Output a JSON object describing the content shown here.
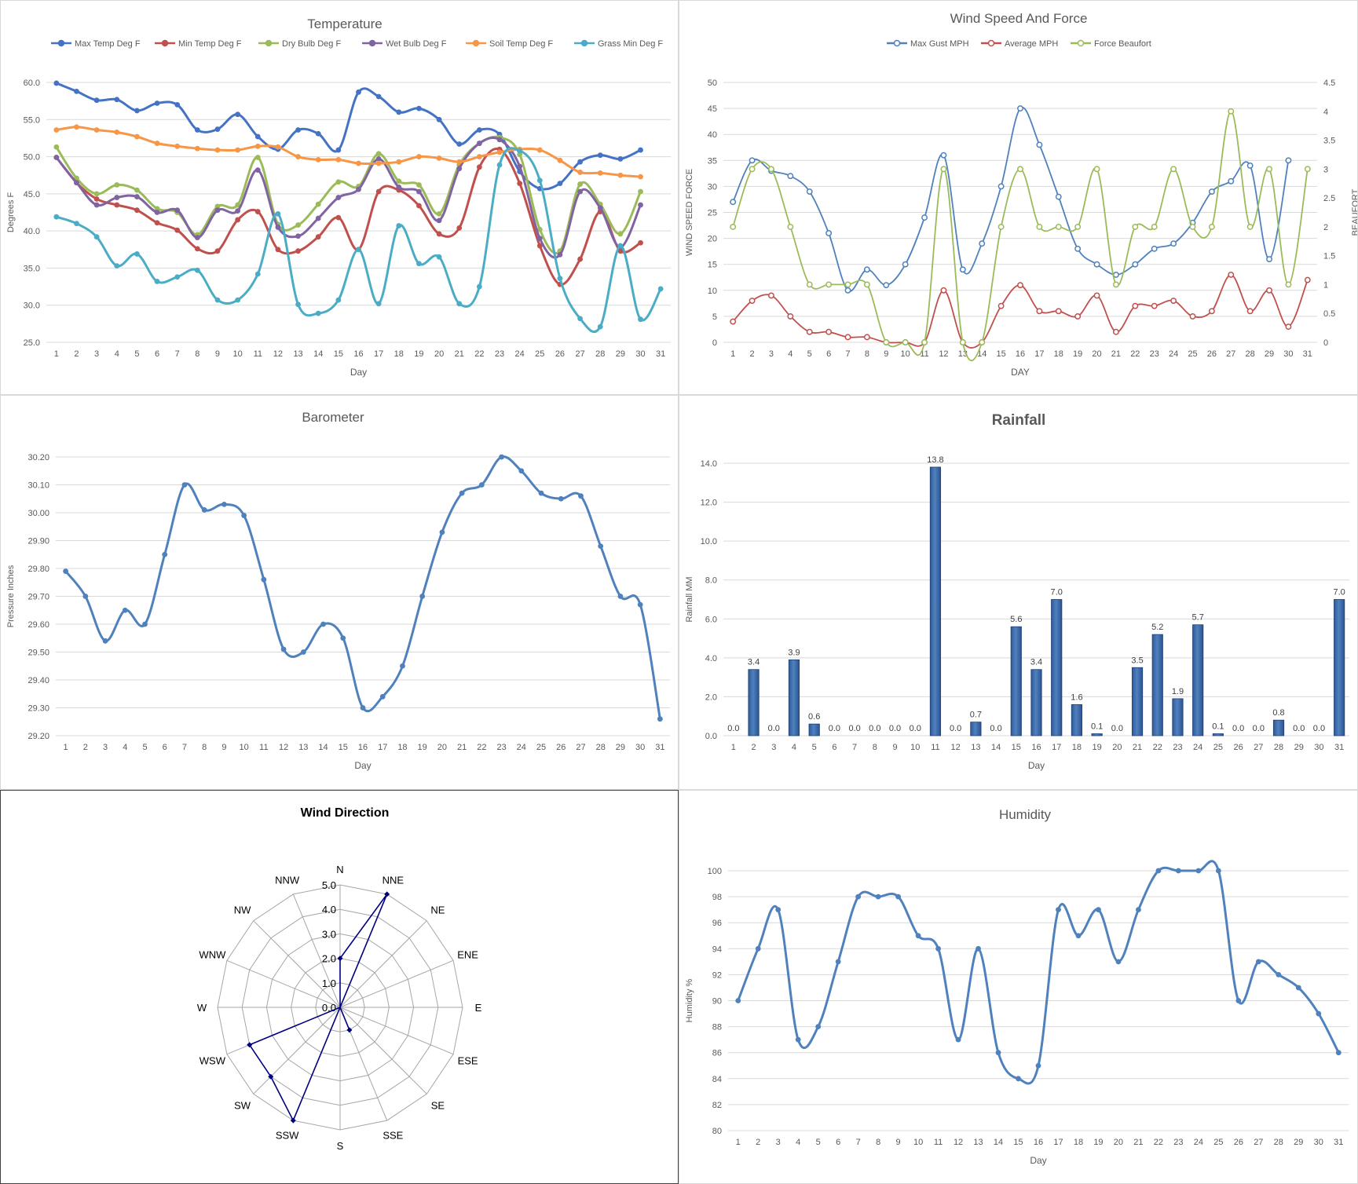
{
  "chart_data": [
    {
      "id": "temperature",
      "type": "line",
      "title": "Temperature",
      "xlabel": "Day",
      "ylabel": "Degrees F",
      "ylim": [
        25,
        60
      ],
      "yticks": [
        "25.0",
        "30.0",
        "35.0",
        "40.0",
        "45.0",
        "50.0",
        "55.0",
        "60.0"
      ],
      "categories": [
        "1",
        "2",
        "3",
        "4",
        "5",
        "6",
        "7",
        "8",
        "9",
        "10",
        "11",
        "12",
        "13",
        "14",
        "15",
        "16",
        "17",
        "18",
        "19",
        "20",
        "21",
        "22",
        "23",
        "24",
        "25",
        "26",
        "27",
        "28",
        "29",
        "30",
        "31"
      ],
      "legend_position": "top",
      "series": [
        {
          "name": "Max Temp Deg F",
          "color": "#4472c4",
          "values": [
            59.9,
            58.8,
            57.6,
            57.7,
            56.2,
            57.2,
            57.0,
            53.6,
            53.7,
            55.7,
            52.7,
            51.0,
            53.6,
            53.1,
            50.9,
            58.7,
            58.1,
            56.0,
            56.5,
            55.0,
            51.7,
            53.6,
            53.0,
            48.0,
            45.7,
            46.4,
            49.3,
            50.2,
            49.7,
            50.9,
            null
          ]
        },
        {
          "name": "Min Temp Deg F",
          "color": "#c0504d",
          "values": [
            49.9,
            46.5,
            44.3,
            43.5,
            42.8,
            41.1,
            40.1,
            37.6,
            37.3,
            41.5,
            42.6,
            37.5,
            37.3,
            39.2,
            41.8,
            37.5,
            45.3,
            45.5,
            43.4,
            39.6,
            40.4,
            48.6,
            51.0,
            46.4,
            38.0,
            32.8,
            36.2,
            42.6,
            37.3,
            38.4,
            null
          ]
        },
        {
          "name": "Dry Bulb Deg F",
          "color": "#9bbb59",
          "values": [
            51.3,
            47.1,
            45.0,
            46.2,
            45.5,
            43.0,
            42.5,
            39.5,
            43.3,
            43.5,
            49.9,
            40.9,
            40.8,
            43.6,
            46.6,
            46.0,
            50.4,
            46.7,
            46.2,
            42.3,
            48.9,
            51.8,
            52.6,
            50.3,
            40.2,
            37.3,
            46.3,
            43.6,
            39.6,
            45.3,
            null
          ]
        },
        {
          "name": "Wet Bulb Deg F",
          "color": "#8064a2",
          "values": [
            49.9,
            46.5,
            43.5,
            44.5,
            44.6,
            42.5,
            42.8,
            39.1,
            42.8,
            42.7,
            48.2,
            40.5,
            39.3,
            41.7,
            44.5,
            45.6,
            49.7,
            45.9,
            45.3,
            41.4,
            48.4,
            51.8,
            52.3,
            48.7,
            39.0,
            36.8,
            45.3,
            43.1,
            37.8,
            43.5,
            null
          ]
        },
        {
          "name": "Soil Temp Deg F",
          "color": "#f79646",
          "values": [
            53.6,
            54.0,
            53.6,
            53.3,
            52.7,
            51.8,
            51.4,
            51.1,
            50.9,
            50.9,
            51.4,
            51.3,
            50.0,
            49.6,
            49.6,
            49.1,
            49.1,
            49.3,
            50.0,
            49.8,
            49.3,
            50.0,
            50.6,
            51.0,
            50.9,
            49.5,
            47.9,
            47.8,
            47.5,
            47.3,
            null
          ]
        },
        {
          "name": "Grass Min Deg F",
          "color": "#4bacc6",
          "values": [
            41.9,
            41.0,
            39.2,
            35.3,
            36.9,
            33.2,
            33.8,
            34.7,
            30.7,
            30.7,
            34.2,
            42.3,
            30.1,
            28.9,
            30.7,
            37.5,
            30.2,
            40.7,
            35.6,
            36.5,
            30.2,
            32.5,
            48.9,
            50.8,
            46.8,
            33.6,
            28.2,
            27.1,
            38.0,
            28.1,
            32.2
          ]
        }
      ]
    },
    {
      "id": "wind",
      "type": "line",
      "title": "Wind Speed And Force",
      "xlabel": "DAY",
      "ylabel": "WIND SPEED FORCE",
      "y2label": "BEAUFORT",
      "ylim": [
        0,
        50
      ],
      "y2lim": [
        0,
        4.5
      ],
      "yticks": [
        "0",
        "5",
        "10",
        "15",
        "20",
        "25",
        "30",
        "35",
        "40",
        "45",
        "50"
      ],
      "y2ticks": [
        "0",
        "0.5",
        "1",
        "1.5",
        "2",
        "2.5",
        "3",
        "3.5",
        "4",
        "4.5"
      ],
      "categories": [
        "1",
        "2",
        "3",
        "4",
        "5",
        "6",
        "7",
        "8",
        "9",
        "10",
        "11",
        "12",
        "13",
        "14",
        "15",
        "16",
        "17",
        "18",
        "19",
        "20",
        "21",
        "22",
        "23",
        "24",
        "25",
        "26",
        "27",
        "28",
        "29",
        "30",
        "31"
      ],
      "legend_position": "top",
      "series": [
        {
          "name": "Max Gust MPH",
          "color": "#4f81bd",
          "axis": "left",
          "values": [
            27,
            35,
            33,
            32,
            29,
            21,
            10,
            14,
            11,
            15,
            24,
            36,
            14,
            19,
            30,
            45,
            38,
            28,
            18,
            15,
            13,
            15,
            18,
            19,
            23,
            29,
            31,
            34,
            16,
            35,
            null
          ]
        },
        {
          "name": "Average MPH",
          "color": "#c0504d",
          "axis": "left",
          "values": [
            4,
            8,
            9,
            5,
            2,
            2,
            1,
            1,
            0,
            0,
            0,
            10,
            0,
            0,
            7,
            11,
            6,
            6,
            5,
            9,
            2,
            7,
            7,
            8,
            5,
            6,
            13,
            6,
            10,
            3,
            12
          ]
        },
        {
          "name": "Force Beaufort",
          "color": "#9bbb59",
          "axis": "right",
          "values": [
            2,
            3,
            3,
            2,
            1,
            1,
            1,
            1,
            0,
            0,
            0,
            3,
            0,
            0,
            2,
            3,
            2,
            2,
            2,
            3,
            1,
            2,
            2,
            3,
            2,
            2,
            4,
            2,
            3,
            1,
            3
          ]
        }
      ]
    },
    {
      "id": "barometer",
      "type": "line",
      "title": "Barometer",
      "xlabel": "Day",
      "ylabel": "Pressure Inches",
      "ylim": [
        29.2,
        30.2
      ],
      "yticks": [
        "29.20",
        "29.30",
        "29.40",
        "29.50",
        "29.60",
        "29.70",
        "29.80",
        "29.90",
        "30.00",
        "30.10",
        "30.20"
      ],
      "categories": [
        "1",
        "2",
        "3",
        "4",
        "5",
        "6",
        "7",
        "8",
        "9",
        "10",
        "11",
        "12",
        "13",
        "14",
        "15",
        "16",
        "17",
        "18",
        "19",
        "20",
        "21",
        "22",
        "23",
        "24",
        "25",
        "26",
        "27",
        "28",
        "29",
        "30",
        "31"
      ],
      "series": [
        {
          "name": "",
          "color": "#4f81bd",
          "values": [
            29.79,
            29.7,
            29.54,
            29.65,
            29.6,
            29.85,
            30.1,
            30.01,
            30.03,
            29.99,
            29.76,
            29.51,
            29.5,
            29.6,
            29.55,
            29.3,
            29.34,
            29.45,
            29.7,
            29.93,
            30.07,
            30.1,
            30.2,
            30.15,
            30.07,
            30.05,
            30.06,
            29.88,
            29.7,
            29.67,
            29.26
          ]
        }
      ]
    },
    {
      "id": "rainfall",
      "type": "bar",
      "title": "Rainfall",
      "xlabel": "Day",
      "ylabel": "Rainfall MM",
      "ylim": [
        0,
        14
      ],
      "yticks": [
        "0.0",
        "2.0",
        "4.0",
        "6.0",
        "8.0",
        "10.0",
        "12.0",
        "14.0"
      ],
      "categories": [
        "1",
        "2",
        "3",
        "4",
        "5",
        "6",
        "7",
        "8",
        "9",
        "10",
        "11",
        "12",
        "13",
        "14",
        "15",
        "16",
        "17",
        "18",
        "19",
        "20",
        "21",
        "22",
        "23",
        "24",
        "25",
        "26",
        "27",
        "28",
        "29",
        "30",
        "31"
      ],
      "values": [
        0.0,
        3.4,
        0.0,
        3.9,
        0.6,
        0.0,
        0.0,
        0.0,
        0.0,
        0.0,
        13.8,
        0.0,
        0.7,
        0.0,
        5.6,
        3.4,
        7.0,
        1.6,
        0.1,
        0.0,
        3.5,
        5.2,
        1.9,
        5.7,
        0.1,
        0.0,
        0.0,
        0.8,
        0.0,
        0.0,
        7.0
      ],
      "value_labels": [
        "0.0",
        "3.4",
        "0.0",
        "3.9",
        "0.6",
        "0.0",
        "0.0",
        "0.0",
        "0.0",
        "0.0",
        "13.8",
        "0.0",
        "0.7",
        "0.0",
        "5.6",
        "3.4",
        "7.0",
        "1.6",
        "0.1",
        "0.0",
        "3.5",
        "5.2",
        "1.9",
        "5.7",
        "0.1",
        "0.0",
        "0.0",
        "0.8",
        "0.0",
        "0.0",
        "7.0"
      ],
      "color": "#4f81bd"
    },
    {
      "id": "wind-direction",
      "type": "radar",
      "title": "Wind Direction",
      "rlim": [
        0,
        5
      ],
      "rticks": [
        "0.0",
        "1.0",
        "2.0",
        "3.0",
        "4.0",
        "5.0"
      ],
      "categories": [
        "N",
        "NNE",
        "NE",
        "ENE",
        "E",
        "ESE",
        "SE",
        "SSE",
        "S",
        "SSW",
        "SW",
        "WSW",
        "W",
        "WNW",
        "NW",
        "NNW"
      ],
      "values": [
        2,
        5,
        0,
        0,
        0,
        0,
        0,
        1,
        0,
        5,
        4,
        4,
        0,
        0,
        0,
        0
      ],
      "color": "#000080"
    },
    {
      "id": "humidity",
      "type": "line",
      "title": "Humidity",
      "xlabel": "Day",
      "ylabel": "Humidity %",
      "ylim": [
        80,
        100
      ],
      "yticks": [
        "80",
        "82",
        "84",
        "86",
        "88",
        "90",
        "92",
        "94",
        "96",
        "98",
        "100"
      ],
      "categories": [
        "1",
        "2",
        "3",
        "4",
        "5",
        "6",
        "7",
        "8",
        "9",
        "10",
        "11",
        "12",
        "13",
        "14",
        "15",
        "16",
        "17",
        "18",
        "19",
        "20",
        "21",
        "22",
        "23",
        "24",
        "25",
        "26",
        "27",
        "28",
        "29",
        "30",
        "31"
      ],
      "series": [
        {
          "name": "",
          "color": "#4f81bd",
          "values": [
            90,
            94,
            97,
            87,
            88,
            93,
            98,
            98,
            98,
            95,
            94,
            87,
            94,
            86,
            84,
            85,
            97,
            95,
            97,
            93,
            97,
            100,
            100,
            100,
            100,
            90,
            93,
            92,
            91,
            89,
            86
          ]
        }
      ]
    }
  ]
}
